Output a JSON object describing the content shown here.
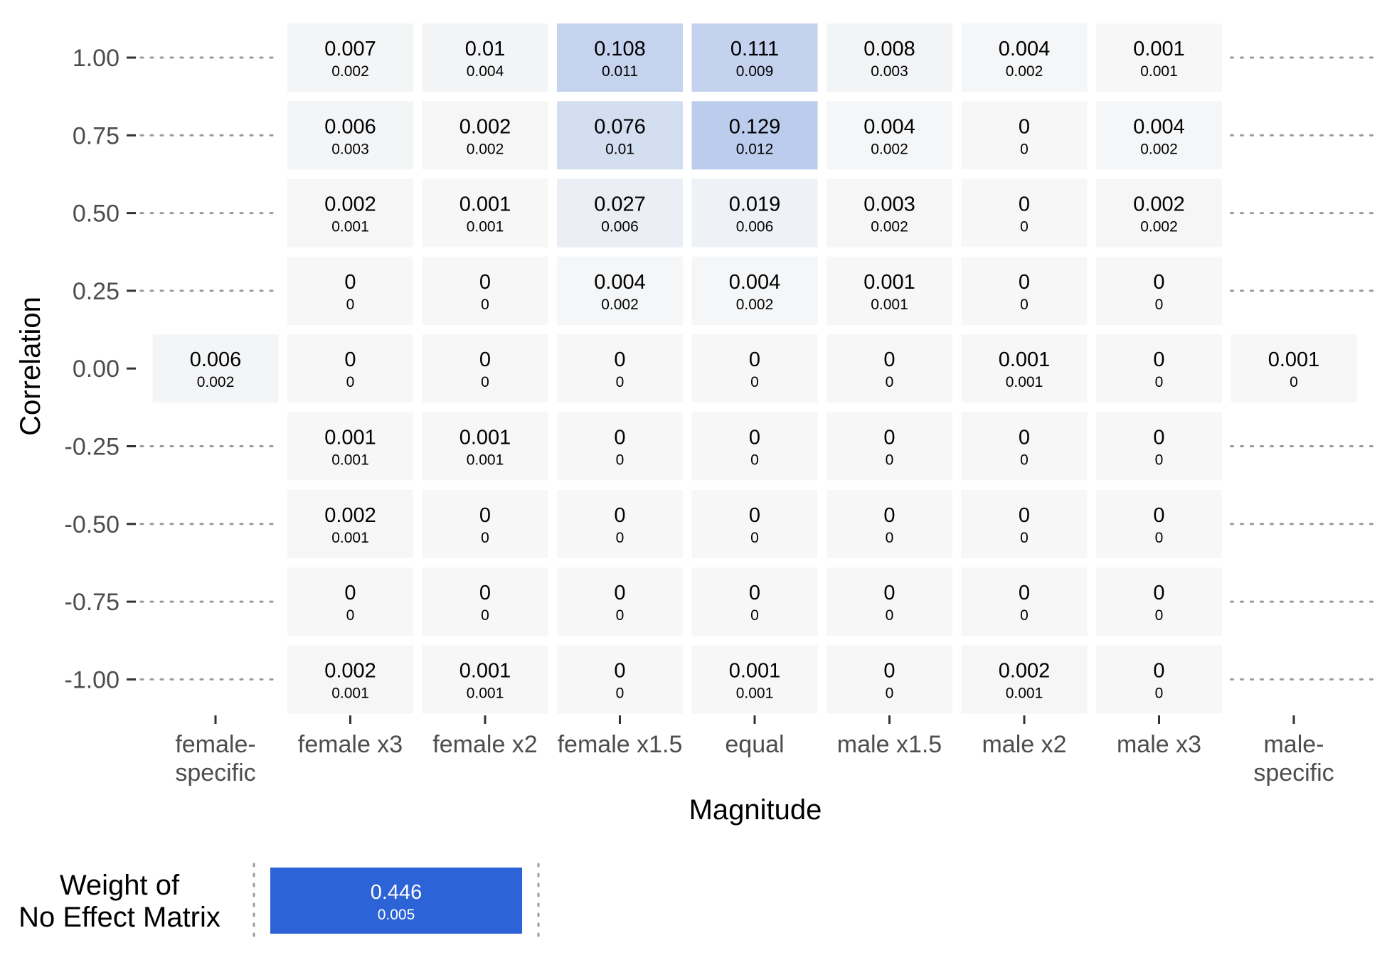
{
  "chart_data": [
    {
      "type": "heatmap",
      "xlabel": "Magnitude",
      "ylabel": "Correlation",
      "x_categories": [
        "female-\nspecific",
        "female x3",
        "female x2",
        "female x1.5",
        "equal",
        "male x1.5",
        "male x2",
        "male x3",
        "male-\nspecific"
      ],
      "y_ticks": [
        "1.00",
        "0.75",
        "0.50",
        "0.25",
        "0.00",
        "-0.25",
        "-0.50",
        "-0.75",
        "-1.00"
      ],
      "y_values": [
        1.0,
        0.75,
        0.5,
        0.25,
        0.0,
        -0.25,
        -0.5,
        -0.75,
        -1.0
      ],
      "grid": "dotted horizontal guides where cells are absent",
      "color_scale": {
        "low": "#f7f7f7",
        "high": "#2c63d6"
      },
      "cells": [
        {
          "x": "female-\nspecific",
          "y": 0.0,
          "value": "0.006",
          "sub": "0.002"
        },
        {
          "x": "male-\nspecific",
          "y": 0.0,
          "value": "0.001",
          "sub": "0"
        },
        {
          "x": "female x3",
          "y": 1.0,
          "value": "0.007",
          "sub": "0.002"
        },
        {
          "x": "female x3",
          "y": 0.75,
          "value": "0.006",
          "sub": "0.003"
        },
        {
          "x": "female x3",
          "y": 0.5,
          "value": "0.002",
          "sub": "0.001"
        },
        {
          "x": "female x3",
          "y": 0.25,
          "value": "0",
          "sub": "0"
        },
        {
          "x": "female x3",
          "y": 0.0,
          "value": "0",
          "sub": "0"
        },
        {
          "x": "female x3",
          "y": -0.25,
          "value": "0.001",
          "sub": "0.001"
        },
        {
          "x": "female x3",
          "y": -0.5,
          "value": "0.002",
          "sub": "0.001"
        },
        {
          "x": "female x3",
          "y": -0.75,
          "value": "0",
          "sub": "0"
        },
        {
          "x": "female x3",
          "y": -1.0,
          "value": "0.002",
          "sub": "0.001"
        },
        {
          "x": "female x2",
          "y": 1.0,
          "value": "0.01",
          "sub": "0.004"
        },
        {
          "x": "female x2",
          "y": 0.75,
          "value": "0.002",
          "sub": "0.002"
        },
        {
          "x": "female x2",
          "y": 0.5,
          "value": "0.001",
          "sub": "0.001"
        },
        {
          "x": "female x2",
          "y": 0.25,
          "value": "0",
          "sub": "0"
        },
        {
          "x": "female x2",
          "y": 0.0,
          "value": "0",
          "sub": "0"
        },
        {
          "x": "female x2",
          "y": -0.25,
          "value": "0.001",
          "sub": "0.001"
        },
        {
          "x": "female x2",
          "y": -0.5,
          "value": "0",
          "sub": "0"
        },
        {
          "x": "female x2",
          "y": -0.75,
          "value": "0",
          "sub": "0"
        },
        {
          "x": "female x2",
          "y": -1.0,
          "value": "0.001",
          "sub": "0.001"
        },
        {
          "x": "female x1.5",
          "y": 1.0,
          "value": "0.108",
          "sub": "0.011"
        },
        {
          "x": "female x1.5",
          "y": 0.75,
          "value": "0.076",
          "sub": "0.01"
        },
        {
          "x": "female x1.5",
          "y": 0.5,
          "value": "0.027",
          "sub": "0.006"
        },
        {
          "x": "female x1.5",
          "y": 0.25,
          "value": "0.004",
          "sub": "0.002"
        },
        {
          "x": "female x1.5",
          "y": 0.0,
          "value": "0",
          "sub": "0"
        },
        {
          "x": "female x1.5",
          "y": -0.25,
          "value": "0",
          "sub": "0"
        },
        {
          "x": "female x1.5",
          "y": -0.5,
          "value": "0",
          "sub": "0"
        },
        {
          "x": "female x1.5",
          "y": -0.75,
          "value": "0",
          "sub": "0"
        },
        {
          "x": "female x1.5",
          "y": -1.0,
          "value": "0",
          "sub": "0"
        },
        {
          "x": "equal",
          "y": 1.0,
          "value": "0.111",
          "sub": "0.009"
        },
        {
          "x": "equal",
          "y": 0.75,
          "value": "0.129",
          "sub": "0.012"
        },
        {
          "x": "equal",
          "y": 0.5,
          "value": "0.019",
          "sub": "0.006"
        },
        {
          "x": "equal",
          "y": 0.25,
          "value": "0.004",
          "sub": "0.002"
        },
        {
          "x": "equal",
          "y": 0.0,
          "value": "0",
          "sub": "0"
        },
        {
          "x": "equal",
          "y": -0.25,
          "value": "0",
          "sub": "0"
        },
        {
          "x": "equal",
          "y": -0.5,
          "value": "0",
          "sub": "0"
        },
        {
          "x": "equal",
          "y": -0.75,
          "value": "0",
          "sub": "0"
        },
        {
          "x": "equal",
          "y": -1.0,
          "value": "0.001",
          "sub": "0.001"
        },
        {
          "x": "male x1.5",
          "y": 1.0,
          "value": "0.008",
          "sub": "0.003"
        },
        {
          "x": "male x1.5",
          "y": 0.75,
          "value": "0.004",
          "sub": "0.002"
        },
        {
          "x": "male x1.5",
          "y": 0.5,
          "value": "0.003",
          "sub": "0.002"
        },
        {
          "x": "male x1.5",
          "y": 0.25,
          "value": "0.001",
          "sub": "0.001"
        },
        {
          "x": "male x1.5",
          "y": 0.0,
          "value": "0",
          "sub": "0"
        },
        {
          "x": "male x1.5",
          "y": -0.25,
          "value": "0",
          "sub": "0"
        },
        {
          "x": "male x1.5",
          "y": -0.5,
          "value": "0",
          "sub": "0"
        },
        {
          "x": "male x1.5",
          "y": -0.75,
          "value": "0",
          "sub": "0"
        },
        {
          "x": "male x1.5",
          "y": -1.0,
          "value": "0",
          "sub": "0"
        },
        {
          "x": "male x2",
          "y": 1.0,
          "value": "0.004",
          "sub": "0.002"
        },
        {
          "x": "male x2",
          "y": 0.75,
          "value": "0",
          "sub": "0"
        },
        {
          "x": "male x2",
          "y": 0.5,
          "value": "0",
          "sub": "0"
        },
        {
          "x": "male x2",
          "y": 0.25,
          "value": "0",
          "sub": "0"
        },
        {
          "x": "male x2",
          "y": 0.0,
          "value": "0.001",
          "sub": "0.001"
        },
        {
          "x": "male x2",
          "y": -0.25,
          "value": "0",
          "sub": "0"
        },
        {
          "x": "male x2",
          "y": -0.5,
          "value": "0",
          "sub": "0"
        },
        {
          "x": "male x2",
          "y": -0.75,
          "value": "0",
          "sub": "0"
        },
        {
          "x": "male x2",
          "y": -1.0,
          "value": "0.002",
          "sub": "0.001"
        },
        {
          "x": "male x3",
          "y": 1.0,
          "value": "0.001",
          "sub": "0.001"
        },
        {
          "x": "male x3",
          "y": 0.75,
          "value": "0.004",
          "sub": "0.002"
        },
        {
          "x": "male x3",
          "y": 0.5,
          "value": "0.002",
          "sub": "0.002"
        },
        {
          "x": "male x3",
          "y": 0.25,
          "value": "0",
          "sub": "0"
        },
        {
          "x": "male x3",
          "y": 0.0,
          "value": "0",
          "sub": "0"
        },
        {
          "x": "male x3",
          "y": -0.25,
          "value": "0",
          "sub": "0"
        },
        {
          "x": "male x3",
          "y": -0.5,
          "value": "0",
          "sub": "0"
        },
        {
          "x": "male x3",
          "y": -0.75,
          "value": "0",
          "sub": "0"
        },
        {
          "x": "male x3",
          "y": -1.0,
          "value": "0",
          "sub": "0"
        }
      ]
    },
    {
      "type": "heatmap",
      "row_label": "Weight of\nNo Effect Matrix",
      "cells": [
        {
          "value": "0.446",
          "sub": "0.005",
          "color": "#2c63d6"
        }
      ]
    }
  ]
}
